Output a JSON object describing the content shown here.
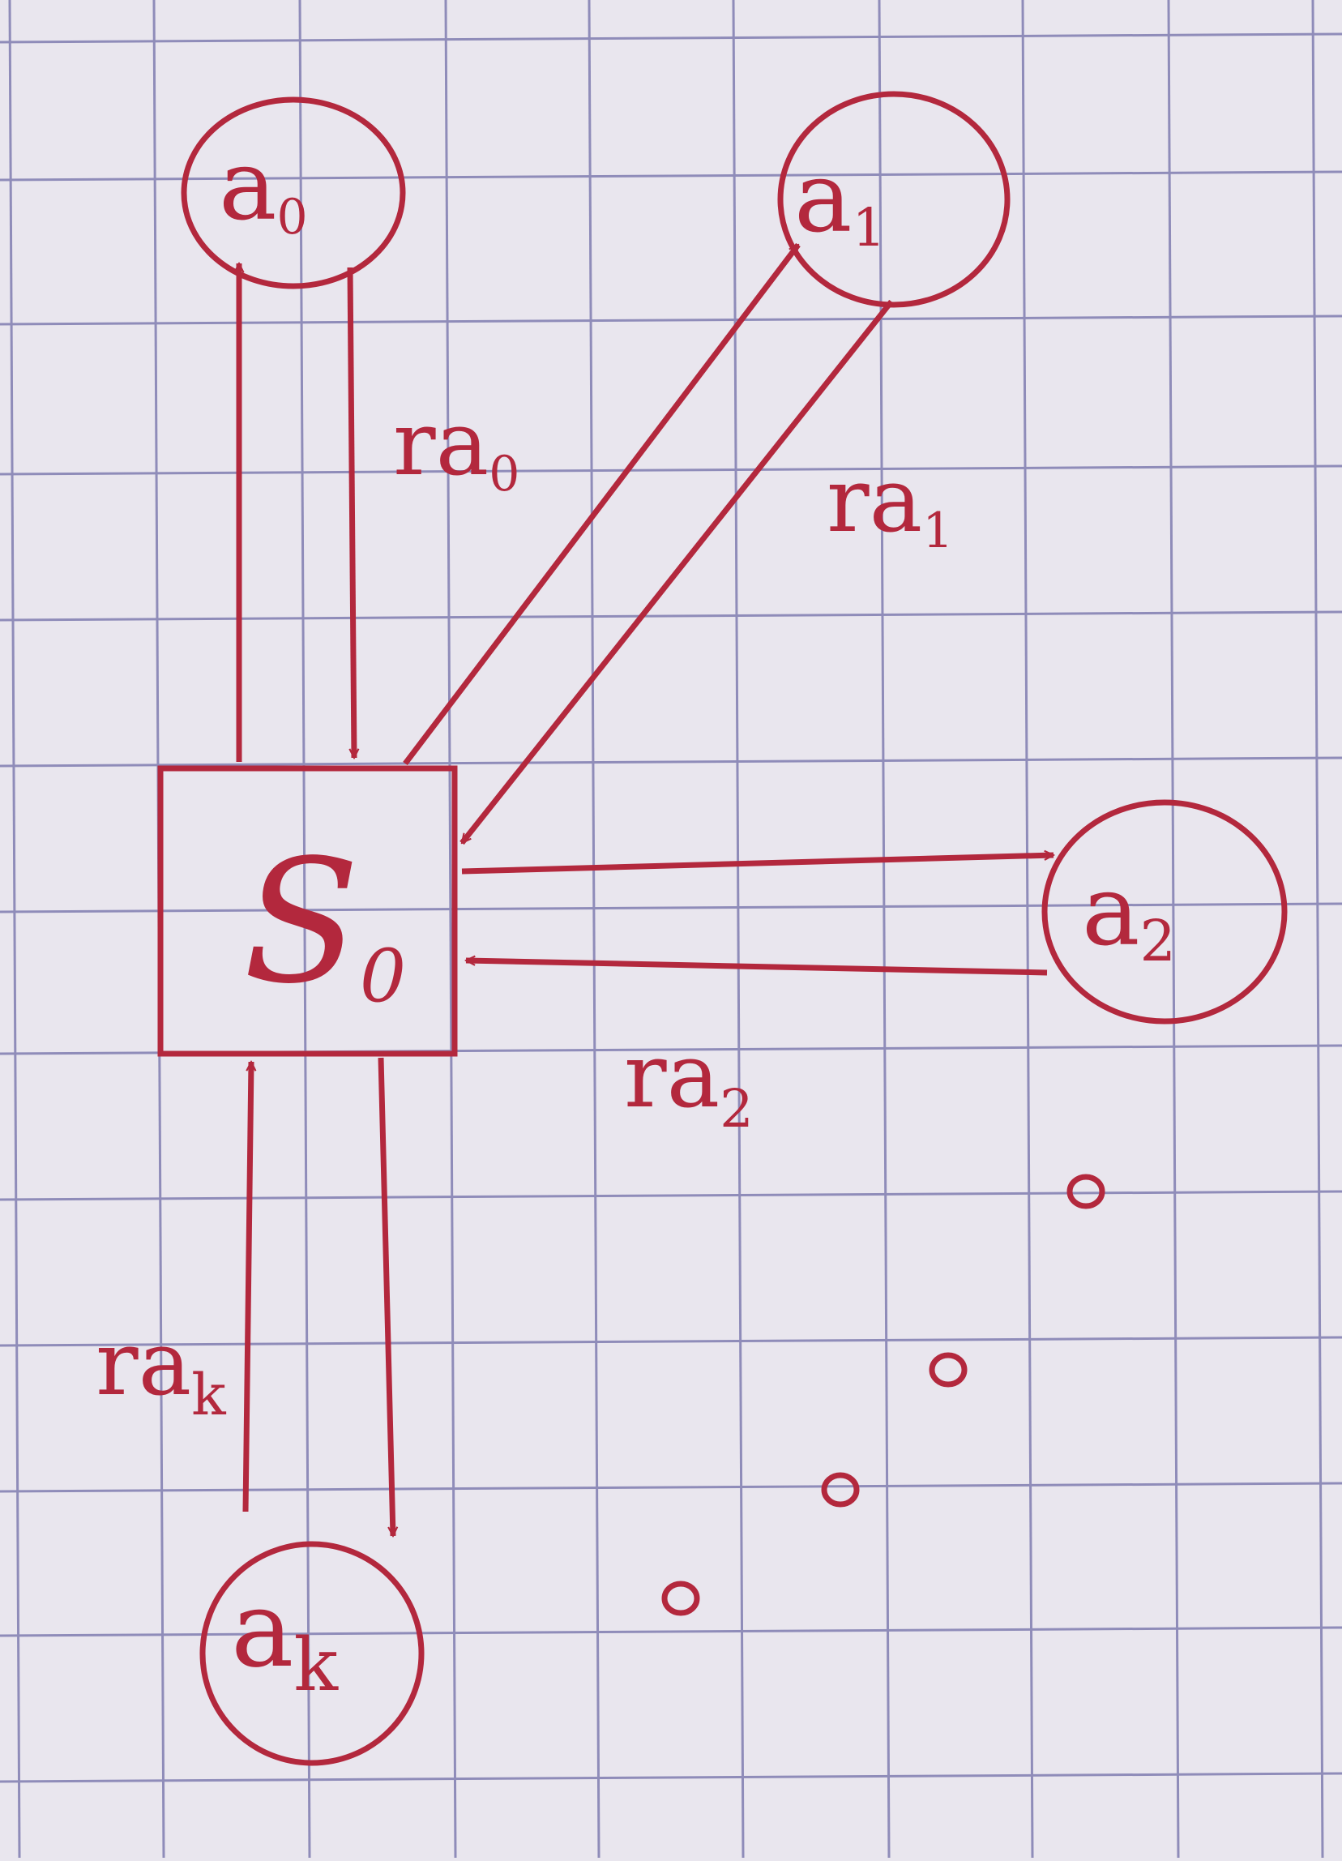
{
  "ink_color": "#b3283d",
  "grid_color": "#8f8cb9",
  "paper_color": "#e9e6ee",
  "state": {
    "base": "S",
    "sub": "0"
  },
  "actions": [
    {
      "id": "a0",
      "base": "a",
      "sub": "0"
    },
    {
      "id": "a1",
      "base": "a",
      "sub": "1"
    },
    {
      "id": "a2",
      "base": "a",
      "sub": "2"
    },
    {
      "id": "ak",
      "base": "a",
      "sub": "k"
    }
  ],
  "rewards": [
    {
      "id": "r_a0",
      "base": "r",
      "mid": "a",
      "sub": "0"
    },
    {
      "id": "r_a1",
      "base": "r",
      "mid": "a",
      "sub": "1"
    },
    {
      "id": "r_a2",
      "base": "r",
      "mid": "a",
      "sub": "2"
    },
    {
      "id": "r_ak",
      "base": "r",
      "mid": "a",
      "sub": "k"
    }
  ],
  "ellipsis_dots": 4
}
